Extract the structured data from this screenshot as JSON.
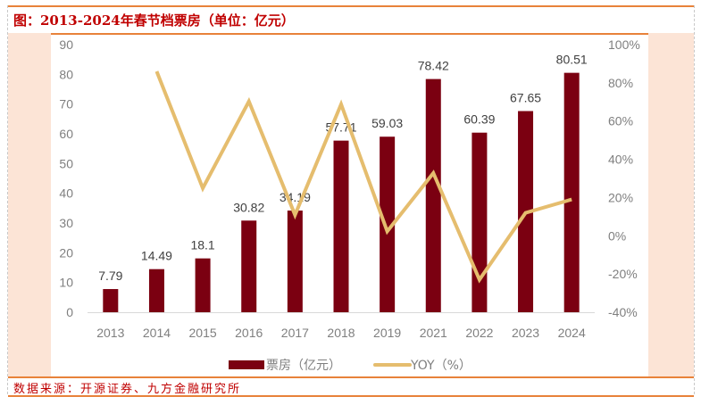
{
  "title": "图：2013-2024年春节档票房（单位：亿元）",
  "source": "数据来源：开源证券、九方金融研究所",
  "colors": {
    "bar": "#7b0011",
    "line": "#e5bd6e",
    "accent": "#e8823a",
    "title": "#c00000",
    "panel": "#fce4d6"
  },
  "chart_data": {
    "type": "bar+line",
    "title": "2013-2024年春节档票房（单位：亿元）",
    "categories": [
      "2013",
      "2014",
      "2015",
      "2016",
      "2017",
      "2018",
      "2019",
      "2021",
      "2022",
      "2023",
      "2024"
    ],
    "series": [
      {
        "name": "票房（亿元）",
        "type": "bar",
        "axis": "left",
        "values": [
          7.79,
          14.49,
          18.1,
          30.82,
          34.19,
          57.71,
          59.03,
          78.42,
          60.39,
          67.65,
          80.51
        ],
        "labels": [
          "7.79",
          "14.49",
          "18.1",
          "30.82",
          "34.19",
          "57.71",
          "59.03",
          "78.42",
          "60.39",
          "67.65",
          "80.51"
        ]
      },
      {
        "name": "YOY（%）",
        "type": "line",
        "axis": "right",
        "values": [
          null,
          86.0,
          24.9,
          70.3,
          10.9,
          68.8,
          2.3,
          32.8,
          -23.0,
          12.0,
          19.0
        ]
      }
    ],
    "y_left": {
      "min": 0,
      "max": 90,
      "ticks": [
        "0",
        "10",
        "20",
        "30",
        "40",
        "50",
        "60",
        "70",
        "80",
        "90"
      ],
      "tick_values": [
        0,
        10,
        20,
        30,
        40,
        50,
        60,
        70,
        80,
        90
      ]
    },
    "y_right": {
      "min": -40,
      "max": 100,
      "ticks": [
        "-40%",
        "-20%",
        "0%",
        "20%",
        "40%",
        "60%",
        "80%",
        "100%"
      ],
      "tick_values": [
        -40,
        -20,
        0,
        20,
        40,
        60,
        80,
        100
      ]
    },
    "grid": false,
    "legend": {
      "position": "bottom",
      "items": [
        "票房（亿元）",
        "YOY（%）"
      ]
    }
  }
}
